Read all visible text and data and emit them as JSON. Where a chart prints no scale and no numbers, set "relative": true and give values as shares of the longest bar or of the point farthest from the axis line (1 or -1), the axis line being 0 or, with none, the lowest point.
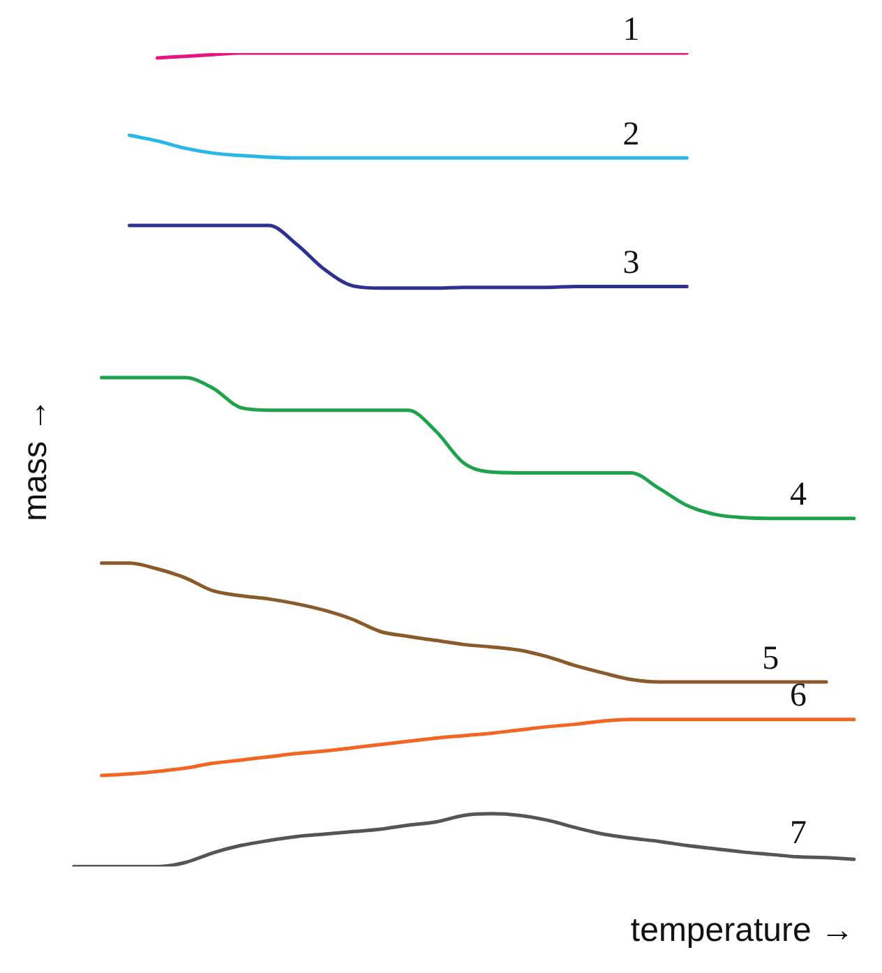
{
  "chart_data": {
    "type": "line",
    "relative": true,
    "xlabel": "temperature →",
    "ylabel": "mass →",
    "legend": false,
    "grid": false,
    "marker": "none",
    "line_style": "solid",
    "categories": [
      null,
      null,
      null,
      null,
      null,
      null,
      null,
      null,
      null,
      null,
      null,
      null,
      null,
      null,
      null,
      null,
      null,
      null,
      null,
      null,
      null,
      null,
      null,
      null,
      null,
      null,
      null,
      null,
      null
    ],
    "series": [
      {
        "name": "1",
        "color": "#e6157f",
        "values": [
          null,
          null,
          null,
          0.994,
          0.996,
          0.998,
          1,
          1,
          1,
          1,
          1,
          1,
          1,
          1,
          1,
          1,
          1,
          1,
          1,
          1,
          1,
          1,
          1,
          null,
          null,
          null,
          null,
          null,
          null
        ]
      },
      {
        "name": "2",
        "color": "#29b6e8",
        "values": [
          null,
          null,
          0.899,
          0.892,
          0.883,
          0.877,
          0.874,
          0.872,
          0.871,
          0.871,
          0.871,
          0.871,
          0.871,
          0.871,
          0.871,
          0.871,
          0.871,
          0.871,
          0.871,
          0.871,
          0.871,
          0.871,
          0.871,
          null,
          null,
          null,
          null,
          null,
          null
        ]
      },
      {
        "name": "3",
        "color": "#2e3192",
        "values": [
          null,
          null,
          0.788,
          0.788,
          0.788,
          0.788,
          0.788,
          0.788,
          0.765,
          0.734,
          0.714,
          0.711,
          0.711,
          0.711,
          0.712,
          0.712,
          0.712,
          0.712,
          0.713,
          0.713,
          0.713,
          0.713,
          0.713,
          null,
          null,
          null,
          null,
          null,
          null
        ]
      },
      {
        "name": "4",
        "color": "#1ea34a",
        "values": [
          null,
          0.601,
          0.601,
          0.601,
          0.601,
          0.588,
          0.564,
          0.561,
          0.561,
          0.561,
          0.561,
          0.561,
          0.561,
          0.535,
          0.496,
          0.485,
          0.484,
          0.484,
          0.484,
          0.484,
          0.484,
          0.465,
          0.444,
          0.433,
          0.429,
          0.428,
          0.428,
          0.428,
          0.428
        ]
      },
      {
        "name": "5",
        "color": "#8b5a2b",
        "values": [
          null,
          0.373,
          0.373,
          0.366,
          0.355,
          0.339,
          0.333,
          0.329,
          0.323,
          0.315,
          0.304,
          0.289,
          0.283,
          0.278,
          0.273,
          0.27,
          0.266,
          0.258,
          0.247,
          0.238,
          0.23,
          0.227,
          0.227,
          0.227,
          0.227,
          0.227,
          0.227,
          0.227,
          null
        ]
      },
      {
        "name": "6",
        "color": "#f26522",
        "values": [
          null,
          0.112,
          0.114,
          0.117,
          0.121,
          0.127,
          0.131,
          0.135,
          0.139,
          0.142,
          0.146,
          0.15,
          0.154,
          0.158,
          0.161,
          0.164,
          0.168,
          0.172,
          0.175,
          0.179,
          0.181,
          0.181,
          0.181,
          0.181,
          0.181,
          0.181,
          0.181,
          0.181,
          0.181
        ]
      },
      {
        "name": "7",
        "color": "#555555",
        "values": [
          0,
          0,
          0,
          0,
          0.005,
          0.017,
          0.026,
          0.032,
          0.037,
          0.04,
          0.043,
          0.046,
          0.051,
          0.055,
          0.063,
          0.065,
          0.063,
          0.057,
          0.048,
          0.04,
          0.035,
          0.031,
          0.026,
          0.022,
          0.018,
          0.015,
          0.012,
          0.011,
          0.009
        ]
      }
    ]
  }
}
